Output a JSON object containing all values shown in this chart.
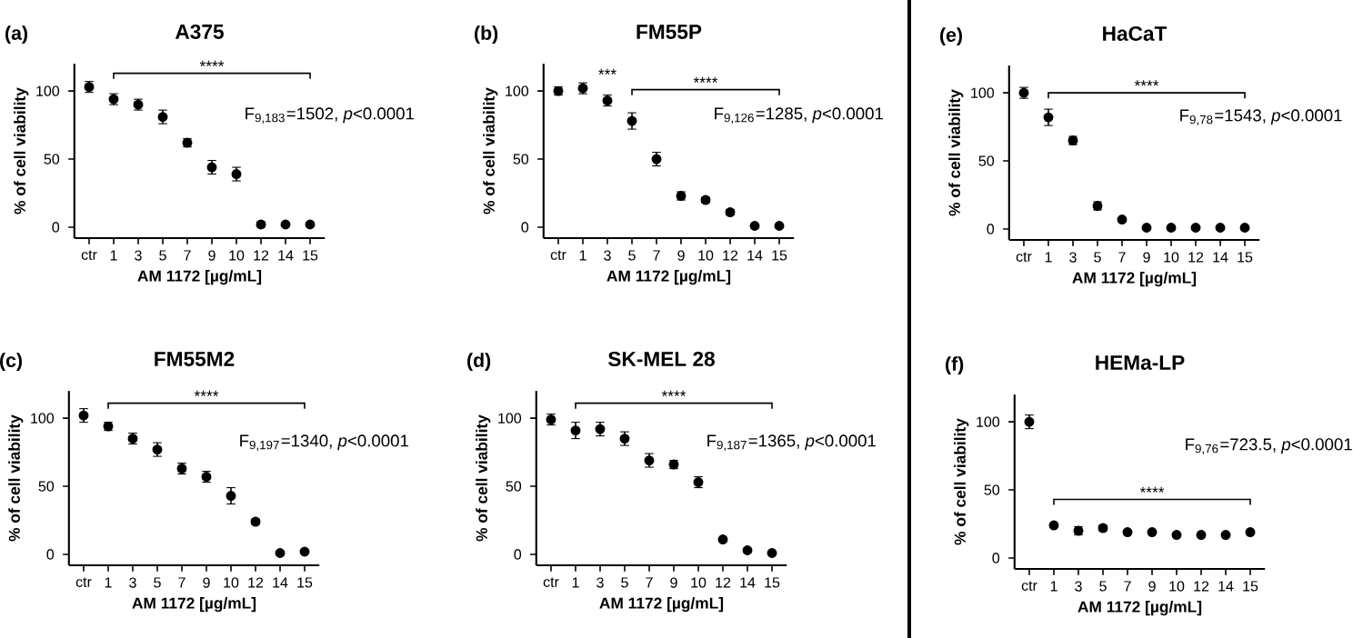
{
  "chart_data": [
    {
      "type": "scatter",
      "title": "A375",
      "xlabel": "AM 1172 [µg/mL]",
      "ylabel": "% of cell viability",
      "categories": [
        "ctr",
        "1",
        "3",
        "5",
        "7",
        "9",
        "10",
        "12",
        "14",
        "15"
      ],
      "values": [
        103,
        94,
        90,
        81,
        62,
        44,
        39,
        2,
        2,
        2
      ],
      "errors": [
        4,
        4,
        4,
        5,
        3,
        5,
        5,
        2,
        1,
        1
      ],
      "color": "#000000",
      "ylim": [
        -8,
        120
      ],
      "yticks": [
        0,
        50,
        100
      ],
      "annotations": [
        "(a)",
        "****",
        "F$_{9,183}$=1502, *p*<0.0001"
      ]
    },
    {
      "type": "scatter",
      "title": "FM55P",
      "xlabel": "AM 1172 [µg/mL]",
      "ylabel": "% of cell viability",
      "categories": [
        "ctr",
        "1",
        "3",
        "5",
        "7",
        "9",
        "10",
        "12",
        "14",
        "15"
      ],
      "values": [
        100,
        102,
        93,
        78,
        50,
        23,
        20,
        11,
        1,
        1
      ],
      "errors": [
        3,
        4,
        4,
        6,
        5,
        3,
        2,
        2,
        0.5,
        0.5
      ],
      "color": "#000000",
      "ylim": [
        -8,
        120
      ],
      "yticks": [
        0,
        50,
        100
      ],
      "annotations": [
        "(b)",
        "***",
        "****",
        "F$_{9,126}$=1285, *p*<0.0001"
      ]
    },
    {
      "type": "scatter",
      "title": "HaCaT",
      "xlabel": "AM 1172 [µg/mL]",
      "ylabel": "% of cell viability",
      "categories": [
        "ctr",
        "1",
        "3",
        "5",
        "7",
        "9",
        "10",
        "12",
        "14",
        "15"
      ],
      "values": [
        100,
        82,
        65,
        17,
        7,
        1,
        1,
        1,
        1,
        1
      ],
      "errors": [
        4,
        6,
        3,
        3,
        1,
        0.5,
        0.5,
        0.5,
        0.5,
        0.5
      ],
      "color": "#000000",
      "ylim": [
        -8,
        120
      ],
      "yticks": [
        0,
        50,
        100
      ],
      "annotations": [
        "(e)",
        "****",
        "F$_{9,78}$=1543, *p*<0.0001"
      ]
    },
    {
      "type": "scatter",
      "title": "FM55M2",
      "xlabel": "AM 1172 [µg/mL]",
      "ylabel": "% of cell viability",
      "categories": [
        "ctr",
        "1",
        "3",
        "5",
        "7",
        "9",
        "10",
        "12",
        "14",
        "15"
      ],
      "values": [
        102,
        94,
        85,
        77,
        63,
        57,
        43,
        24,
        1,
        2
      ],
      "errors": [
        5,
        3,
        4,
        5,
        4,
        4,
        6,
        2,
        0.5,
        0.5
      ],
      "color": "#000000",
      "ylim": [
        -8,
        120
      ],
      "yticks": [
        0,
        50,
        100
      ],
      "annotations": [
        "(c)",
        "****",
        "F$_{9,197}$=1340, *p*<0.0001"
      ]
    },
    {
      "type": "scatter",
      "title": "SK-MEL 28",
      "xlabel": "AM 1172 [µg/mL]",
      "ylabel": "% of cell viability",
      "categories": [
        "ctr",
        "1",
        "3",
        "5",
        "7",
        "9",
        "10",
        "12",
        "14",
        "15"
      ],
      "values": [
        99,
        91,
        92,
        85,
        69,
        66,
        53,
        11,
        3,
        1
      ],
      "errors": [
        4,
        6,
        5,
        5,
        5,
        3,
        4,
        1,
        1,
        0.5
      ],
      "color": "#000000",
      "ylim": [
        -8,
        120
      ],
      "yticks": [
        0,
        50,
        100
      ],
      "annotations": [
        "(d)",
        "****",
        "F$_{9,187}$=1365, *p*<0.0001"
      ]
    },
    {
      "type": "scatter",
      "title": "HEMa-LP",
      "xlabel": "AM 1172 [µg/mL]",
      "ylabel": "% of cell viability",
      "categories": [
        "ctr",
        "1",
        "3",
        "5",
        "7",
        "9",
        "10",
        "12",
        "14",
        "15"
      ],
      "values": [
        100,
        24,
        20,
        22,
        19,
        19,
        17,
        17,
        17,
        19
      ],
      "errors": [
        5,
        1,
        3,
        2,
        1,
        1,
        1,
        1,
        1,
        1
      ],
      "color": "#000000",
      "ylim": [
        -8,
        120
      ],
      "yticks": [
        0,
        50,
        100
      ],
      "annotations": [
        "(f)",
        "****",
        "F$_{9,76}$=723.5, *p*<0.0001"
      ]
    }
  ]
}
